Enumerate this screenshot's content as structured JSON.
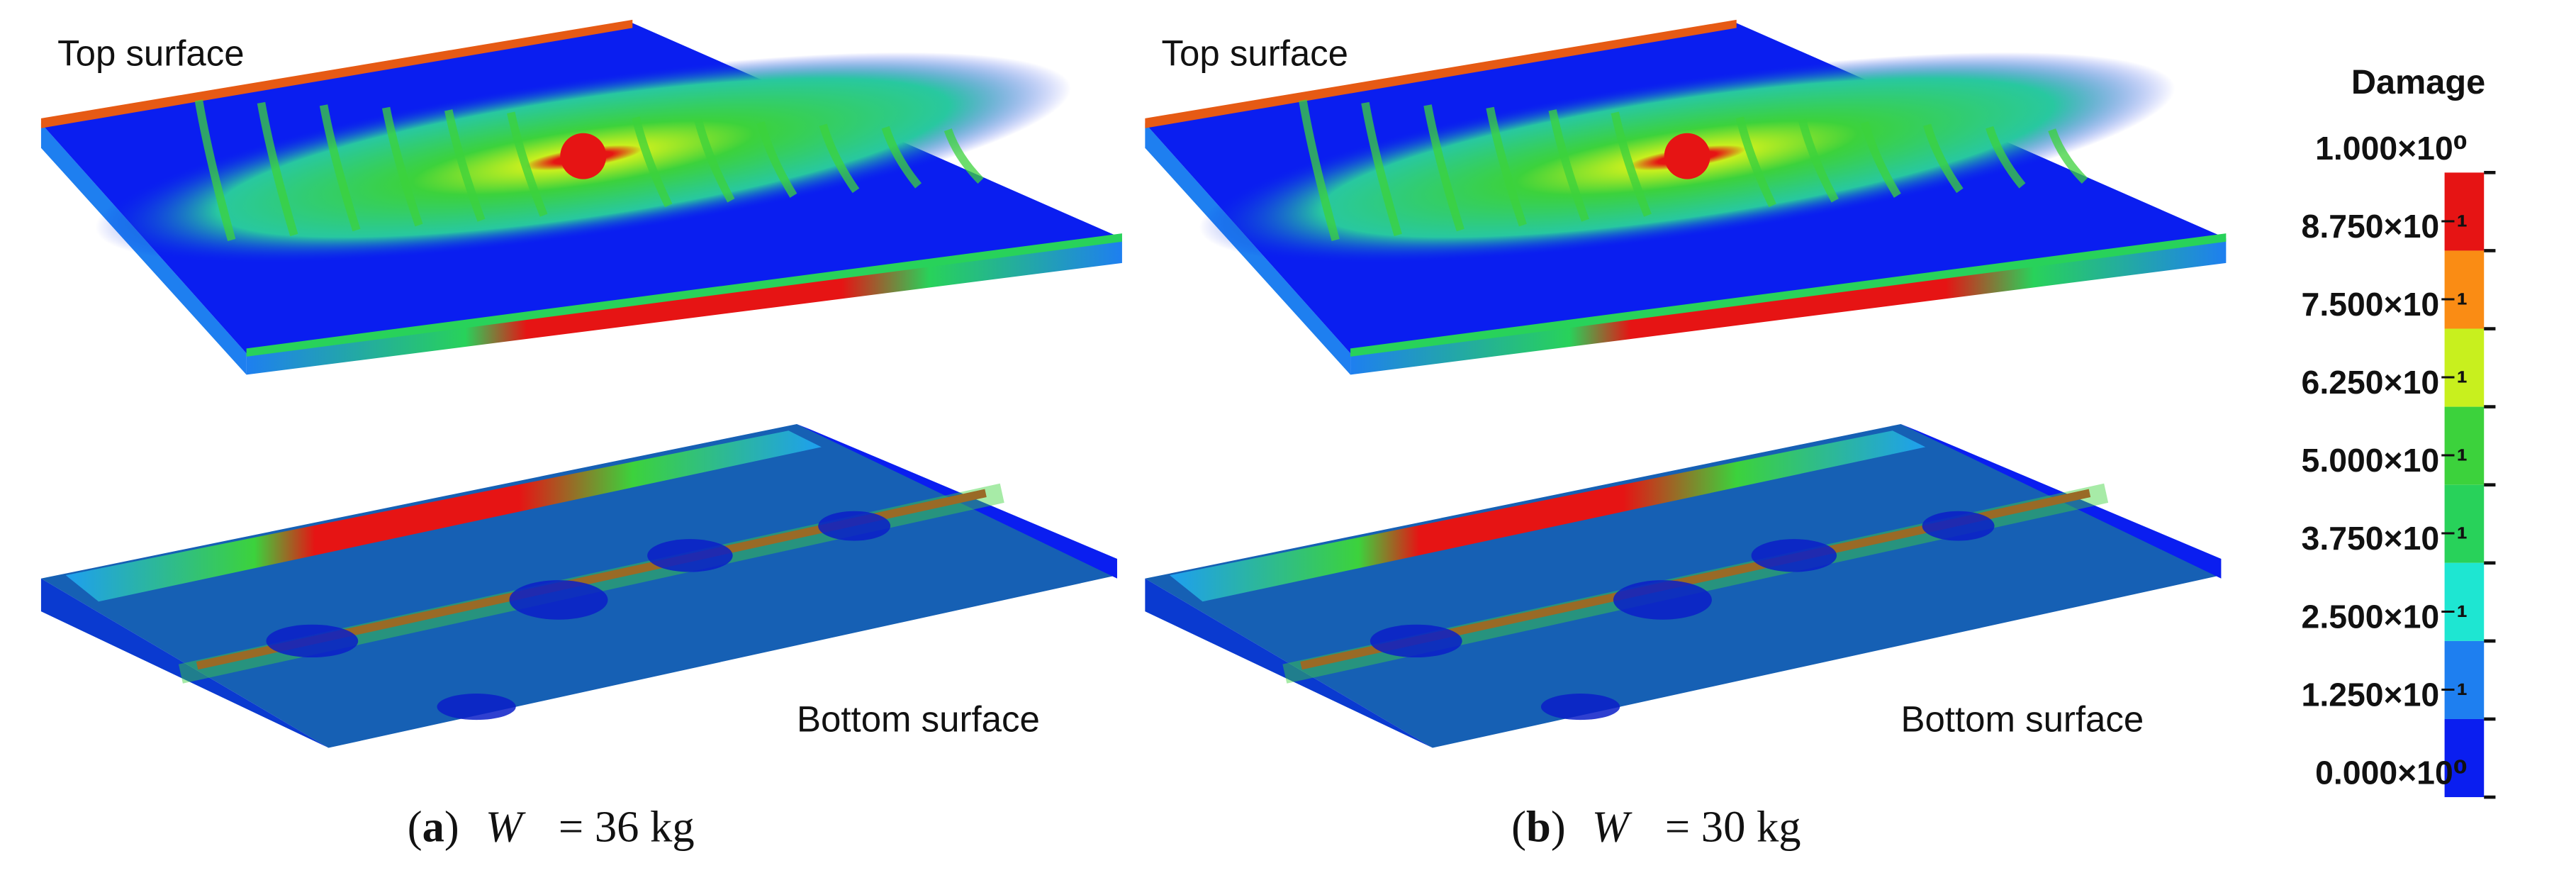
{
  "panels": [
    {
      "top_label": "Top surface",
      "bottom_label": "Bottom surface",
      "caption": {
        "open": "(",
        "label": "a",
        "close": ")",
        "symbol": "W",
        "text": "= 36 kg"
      }
    },
    {
      "top_label": "Top surface",
      "bottom_label": "Bottom surface",
      "caption": {
        "open": "(",
        "label": "b",
        "close": ")",
        "symbol": "W",
        "text": "= 30 kg"
      }
    }
  ],
  "legend": {
    "title": "Damage",
    "ticks": [
      {
        "value": 1,
        "label": "1.000×10⁰"
      },
      {
        "value": 0.875,
        "label": "8.750×10⁻¹"
      },
      {
        "value": 0.75,
        "label": "7.500×10⁻¹"
      },
      {
        "value": 0.625,
        "label": "6.250×10⁻¹"
      },
      {
        "value": 0.5,
        "label": "5.000×10⁻¹"
      },
      {
        "value": 0.375,
        "label": "3.750×10⁻¹"
      },
      {
        "value": 0.25,
        "label": "2.500×10⁻¹"
      },
      {
        "value": 0.125,
        "label": "1.250×10⁻¹"
      },
      {
        "value": 0,
        "label": "0.000×10⁰"
      }
    ],
    "range": [
      0,
      1
    ],
    "colors": [
      "#0a1ef0",
      "#1e7ff0",
      "#1ee6d2",
      "#28d25a",
      "#3cd23c",
      "#c8f01e",
      "#fa8c14",
      "#e61414"
    ]
  }
}
